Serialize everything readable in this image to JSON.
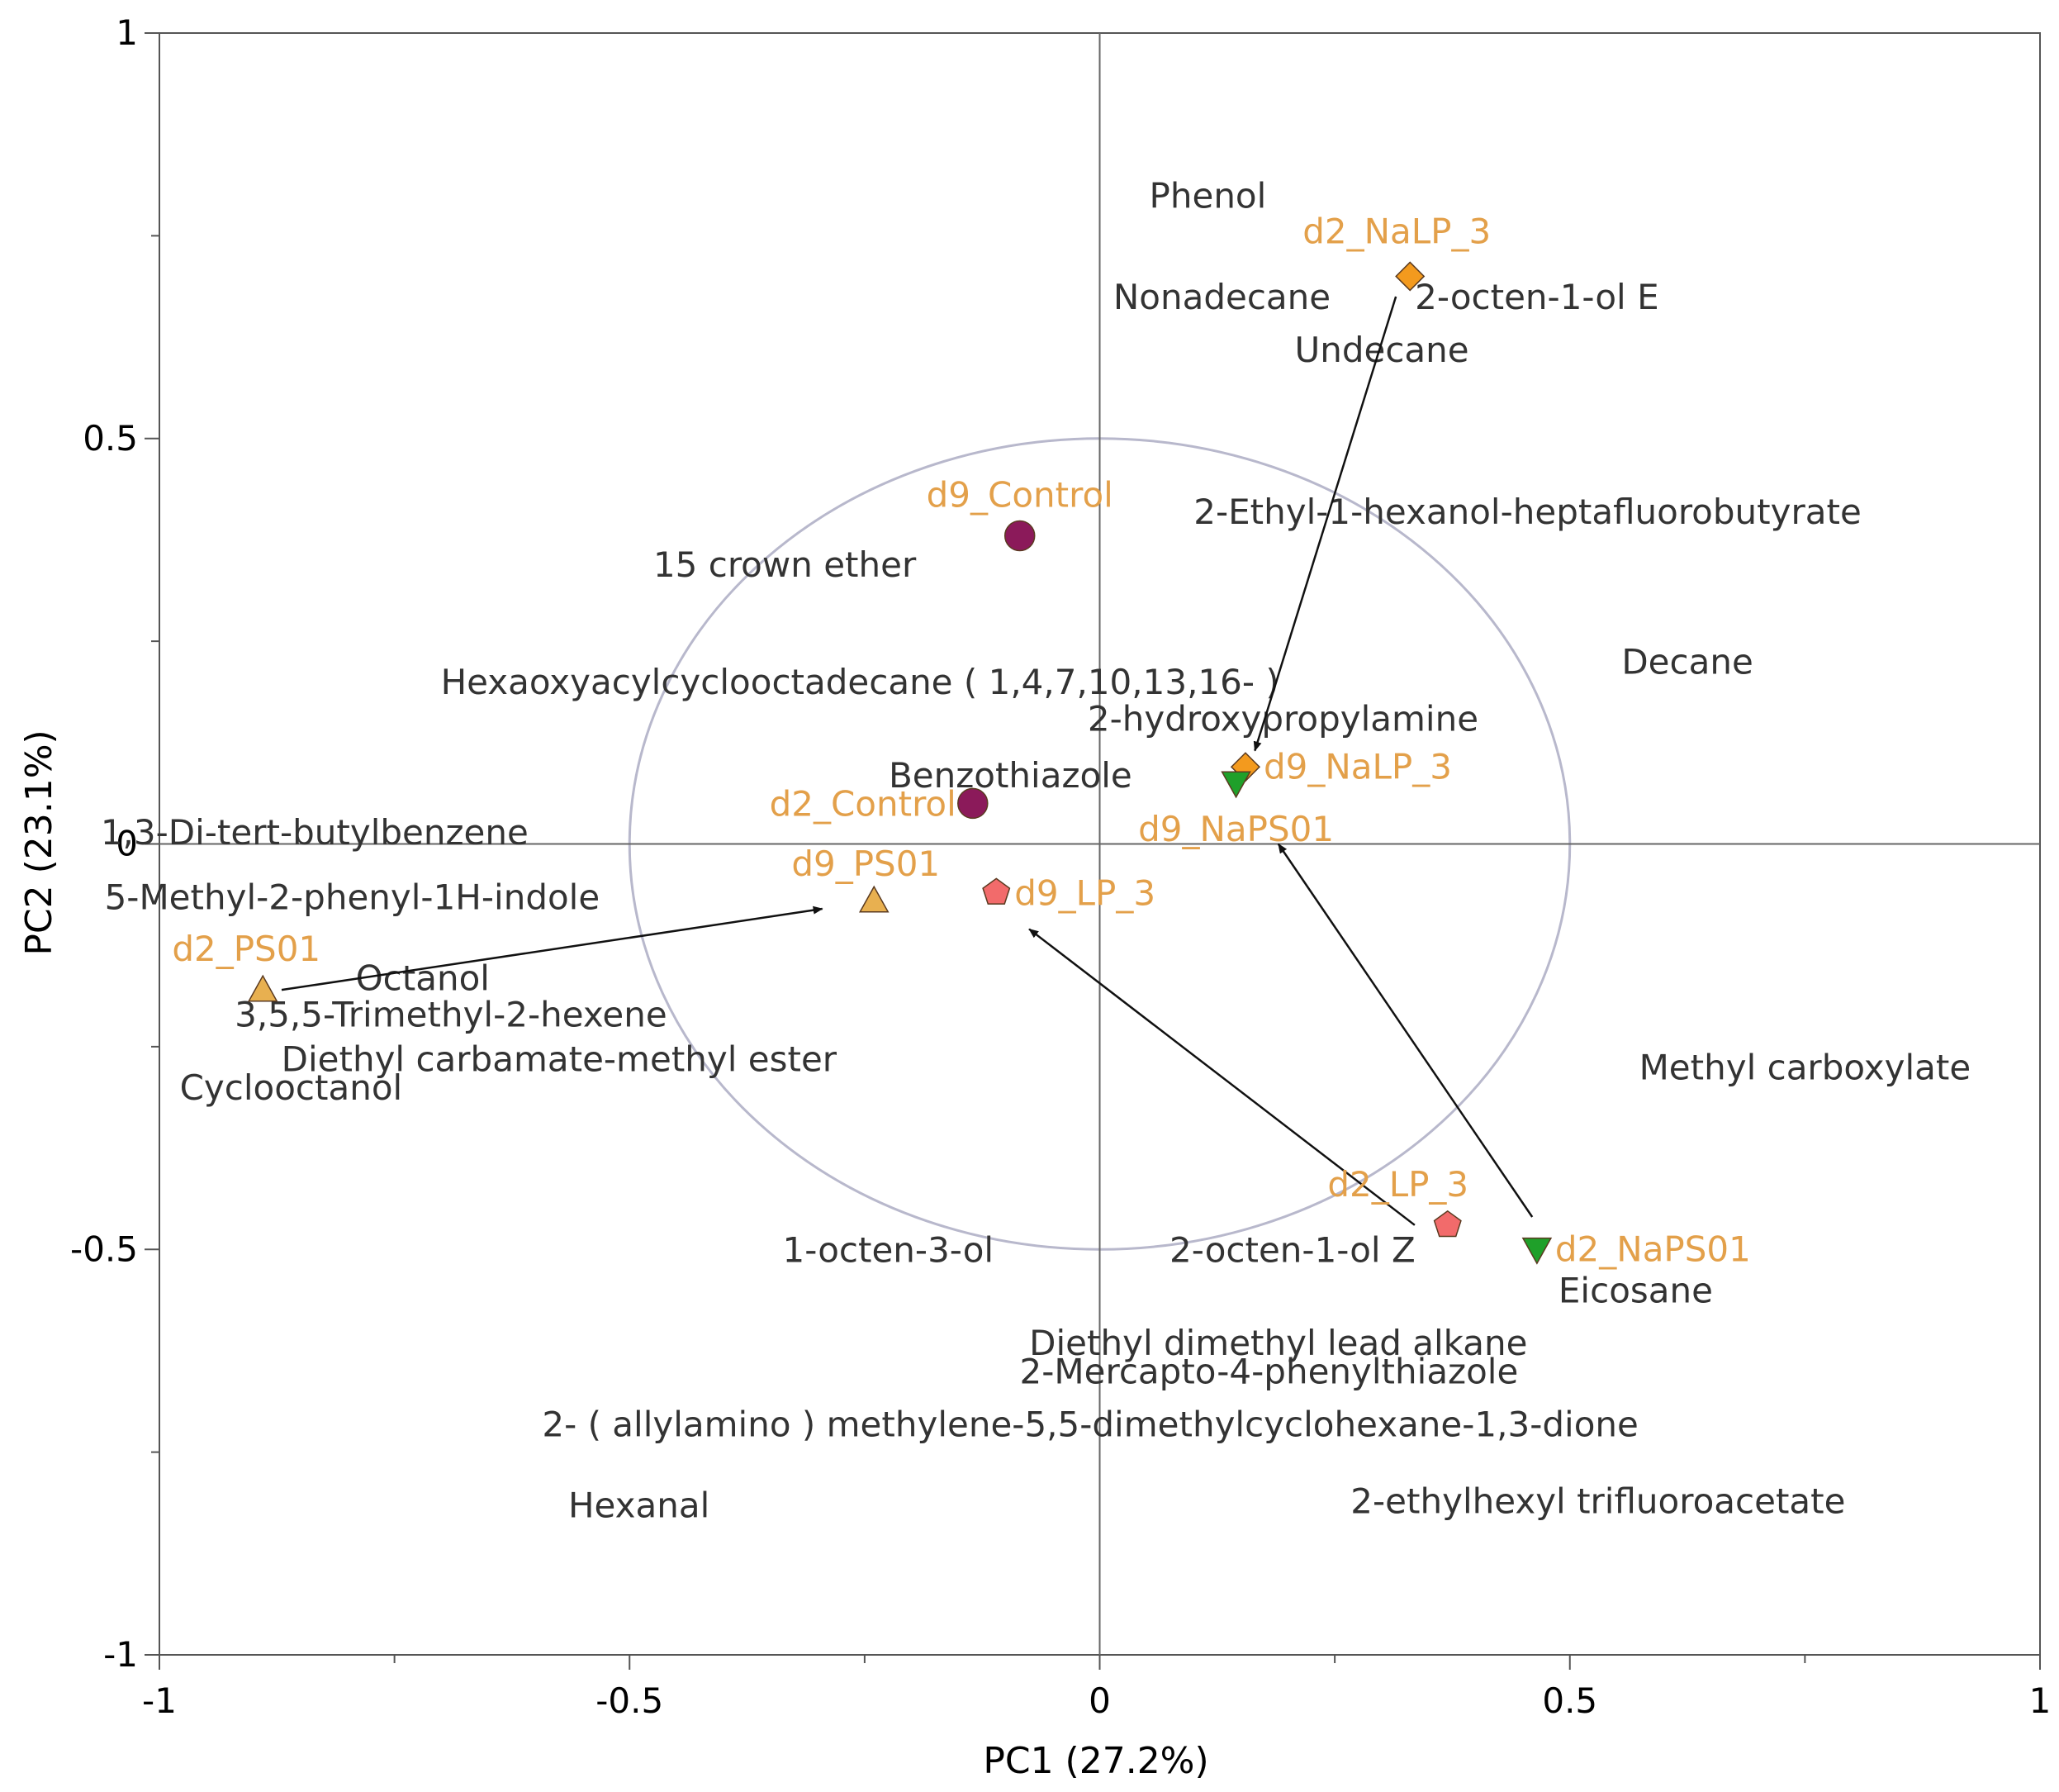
{
  "chart_data": {
    "type": "scatter",
    "subtype": "pca-biplot",
    "title": "",
    "xlabel": "PC1   (27.2%)",
    "ylabel": "PC2   (23.1%)",
    "xlim": [
      -1,
      1
    ],
    "ylim": [
      -1,
      1
    ],
    "x_ticks": [
      -1,
      -0.5,
      0,
      0.5,
      1
    ],
    "y_ticks": [
      -1,
      -0.5,
      0,
      0.5,
      1
    ],
    "x_tick_labels": [
      "-1",
      "-0.5",
      "0",
      "0.5",
      "1"
    ],
    "y_tick_labels": [
      "-1",
      "-0.5",
      "0",
      "0.5",
      "1"
    ],
    "grid": false,
    "correlation_circle_radius": 0.5,
    "colors": {
      "axis": "#555555",
      "zero_line": "#666666",
      "circle": "#b8b8cc",
      "sample_label": "#e3a04a",
      "variable_label": "#333333",
      "arrow": "#111111"
    },
    "samples": [
      {
        "name": "d2_NaLP_3",
        "x": 0.33,
        "y": 0.7,
        "marker": "diamond",
        "color": "#f39a1e"
      },
      {
        "name": "d9_NaLP_3",
        "x": 0.155,
        "y": 0.095,
        "marker": "diamond",
        "color": "#f39a1e"
      },
      {
        "name": "d9_Control",
        "x": -0.085,
        "y": 0.38,
        "marker": "circle",
        "color": "#8b1a5a"
      },
      {
        "name": "d2_Control",
        "x": -0.135,
        "y": 0.05,
        "marker": "circle",
        "color": "#8b1a5a"
      },
      {
        "name": "d9_PS01",
        "x": -0.24,
        "y": -0.07,
        "marker": "triangle-up",
        "color": "#e8b050"
      },
      {
        "name": "d2_PS01",
        "x": -0.89,
        "y": -0.18,
        "marker": "triangle-up",
        "color": "#e8b050"
      },
      {
        "name": "d9_LP_3",
        "x": -0.11,
        "y": -0.06,
        "marker": "pentagon",
        "color": "#f26b6b"
      },
      {
        "name": "d2_LP_3",
        "x": 0.37,
        "y": -0.47,
        "marker": "pentagon",
        "color": "#f26b6b"
      },
      {
        "name": "d9_NaPS01",
        "x": 0.145,
        "y": 0.075,
        "marker": "triangle-down",
        "color": "#1fa02a"
      },
      {
        "name": "d2_NaPS01",
        "x": 0.465,
        "y": -0.5,
        "marker": "triangle-down",
        "color": "#1fa02a"
      }
    ],
    "variables": [
      {
        "label": "Phenol",
        "x": 0.115,
        "y": 0.8
      },
      {
        "label": "Nonadecane",
        "x": 0.13,
        "y": 0.675
      },
      {
        "label": "2-octen-1-ol E",
        "x": 0.465,
        "y": 0.675
      },
      {
        "label": "Undecane",
        "x": 0.3,
        "y": 0.61
      },
      {
        "label": "2-Ethyl-1-hexanol-heptafluorobutyrate",
        "x": 0.455,
        "y": 0.41
      },
      {
        "label": "15 crown ether",
        "x": -0.335,
        "y": 0.345
      },
      {
        "label": "Decane",
        "x": 0.625,
        "y": 0.225
      },
      {
        "label": "Hexaoxyacylcyclooctadecane ( 1,4,7,10,13,16- )",
        "x": -0.255,
        "y": 0.2
      },
      {
        "label": "2-hydroxypropylamine",
        "x": 0.195,
        "y": 0.155
      },
      {
        "label": "Benzothiazole",
        "x": -0.095,
        "y": 0.085
      },
      {
        "label": "1,3-Di-tert-butylbenzene",
        "x": -0.835,
        "y": 0.015
      },
      {
        "label": "5-Methyl-2-phenyl-1H-indole",
        "x": -0.795,
        "y": -0.065
      },
      {
        "label": "Octanol",
        "x": -0.72,
        "y": -0.165
      },
      {
        "label": "3,5,5-Trimethyl-2-hexene",
        "x": -0.69,
        "y": -0.21
      },
      {
        "label": "Diethyl carbamate-methyl ester",
        "x": -0.575,
        "y": -0.265
      },
      {
        "label": "Cyclooctanol",
        "x": -0.86,
        "y": -0.3
      },
      {
        "label": "Methyl carboxylate",
        "x": 0.75,
        "y": -0.275
      },
      {
        "label": "1-octen-3-ol",
        "x": -0.225,
        "y": -0.5
      },
      {
        "label": "2-octen-1-ol Z",
        "x": 0.205,
        "y": -0.5
      },
      {
        "label": "Eicosane",
        "x": 0.57,
        "y": -0.55
      },
      {
        "label": "Diethyl dimethyl lead alkane",
        "x": 0.19,
        "y": -0.615
      },
      {
        "label": "2-Mercapto-4-phenylthiazole",
        "x": 0.18,
        "y": -0.65
      },
      {
        "label": "2- ( allylamino ) methylene-5,5-dimethylcyclohexane-1,3-dione",
        "x": -0.01,
        "y": -0.715
      },
      {
        "label": "Hexanal",
        "x": -0.49,
        "y": -0.815
      },
      {
        "label": "2-ethylhexyl trifluoroacetate",
        "x": 0.53,
        "y": -0.81
      }
    ],
    "trajectories": [
      {
        "from": "d2_NaLP_3",
        "to": "d9_NaLP_3",
        "x1": 0.315,
        "y1": 0.675,
        "x2": 0.165,
        "y2": 0.115
      },
      {
        "from": "d2_PS01",
        "x1": -0.87,
        "y1": -0.18,
        "x2": -0.295,
        "y2": -0.08
      },
      {
        "from": "d2_LP_3",
        "x1": 0.335,
        "y1": -0.47,
        "x2": -0.075,
        "y2": -0.105
      },
      {
        "from": "d2_NaPS01",
        "x1": 0.46,
        "y1": -0.46,
        "x2": 0.19,
        "y2": 0.0
      }
    ]
  }
}
